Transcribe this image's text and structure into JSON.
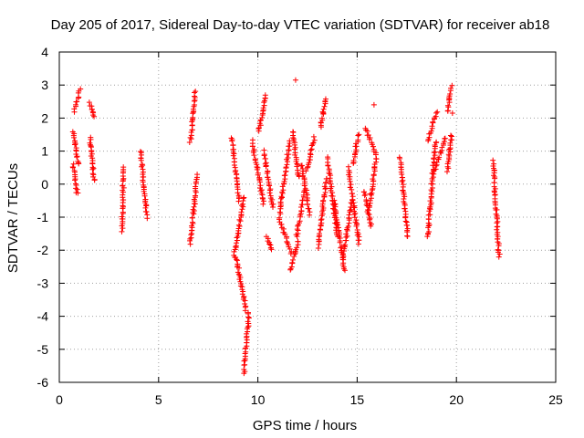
{
  "chart_data": {
    "type": "scatter",
    "title": "Day 205 of 2017, Sidereal Day-to-day VTEC variation (SDTVAR) for receiver ab18",
    "xlabel": "GPS time / hours",
    "ylabel": "SDTVAR / TECUs",
    "xlim": [
      0,
      25
    ],
    "ylim": [
      -6,
      4
    ],
    "x_ticks": [
      0,
      5,
      10,
      15,
      20,
      25
    ],
    "y_ticks": [
      -6,
      -5,
      -4,
      -3,
      -2,
      -1,
      0,
      1,
      2,
      3,
      4
    ],
    "grid": true,
    "marker": "+",
    "color": "#ff0000",
    "tracks": [
      {
        "x": [
          0.7,
          0.9
        ],
        "y": [
          -0.3,
          0.6
        ]
      },
      {
        "x": [
          0.7,
          0.95
        ],
        "y": [
          0.6,
          1.6
        ]
      },
      {
        "x": [
          0.75,
          1.05
        ],
        "y": [
          2.2,
          2.85
        ]
      },
      {
        "x": [
          1.55,
          1.75
        ],
        "y": [
          0.1,
          1.4
        ]
      },
      {
        "x": [
          1.55,
          1.75
        ],
        "y": [
          2.05,
          2.45
        ]
      },
      {
        "x": [
          3.15,
          3.25
        ],
        "y": [
          -1.4,
          0.5
        ]
      },
      {
        "x": [
          4.1,
          4.4
        ],
        "y": [
          -1.0,
          1.0
        ]
      },
      {
        "x": [
          6.6,
          6.85
        ],
        "y": [
          1.3,
          2.8
        ]
      },
      {
        "x": [
          6.6,
          6.95
        ],
        "y": [
          -1.8,
          0.3
        ]
      },
      {
        "x": [
          8.7,
          9.05
        ],
        "y": [
          -0.5,
          1.4
        ]
      },
      {
        "x": [
          8.8,
          9.3
        ],
        "y": [
          -2.2,
          -0.4
        ]
      },
      {
        "x": [
          8.9,
          9.4
        ],
        "y": [
          -3.8,
          -2.2
        ]
      },
      {
        "x": [
          9.3,
          9.55
        ],
        "y": [
          -5.7,
          -3.9
        ]
      },
      {
        "x": [
          9.7,
          10.3
        ],
        "y": [
          -0.6,
          1.3
        ]
      },
      {
        "x": [
          10.05,
          10.4
        ],
        "y": [
          1.6,
          2.7
        ]
      },
      {
        "x": [
          10.3,
          10.75
        ],
        "y": [
          -0.7,
          1.0
        ]
      },
      {
        "x": [
          10.45,
          10.7
        ],
        "y": [
          -2.0,
          -1.6
        ]
      },
      {
        "x": [
          11.05,
          11.7
        ],
        "y": [
          -2.1,
          -1.0
        ]
      },
      {
        "x": [
          11.1,
          11.6
        ],
        "y": [
          -0.9,
          1.3
        ]
      },
      {
        "x": [
          11.65,
          12.05
        ],
        "y": [
          -2.6,
          -1.7
        ]
      },
      {
        "x": [
          11.75,
          12.05
        ],
        "y": [
          0.2,
          1.6
        ]
      },
      {
        "x": [
          11.95,
          12.35
        ],
        "y": [
          -1.6,
          -0.2
        ]
      },
      {
        "x": [
          12.2,
          12.6
        ],
        "y": [
          -0.9,
          0.6
        ]
      },
      {
        "x": [
          12.45,
          12.85
        ],
        "y": [
          0.4,
          1.4
        ]
      },
      {
        "x": [
          13.05,
          13.45
        ],
        "y": [
          -1.9,
          0.2
        ]
      },
      {
        "x": [
          13.15,
          13.45
        ],
        "y": [
          1.7,
          2.6
        ]
      },
      {
        "x": [
          13.5,
          14.0
        ],
        "y": [
          -1.6,
          0.8
        ]
      },
      {
        "x": [
          13.85,
          14.35
        ],
        "y": [
          -2.6,
          -0.5
        ]
      },
      {
        "x": [
          14.25,
          14.75
        ],
        "y": [
          -2.3,
          -0.5
        ]
      },
      {
        "x": [
          14.55,
          15.1
        ],
        "y": [
          -1.8,
          0.5
        ]
      },
      {
        "x": [
          14.8,
          15.05
        ],
        "y": [
          0.6,
          1.5
        ]
      },
      {
        "x": [
          15.35,
          15.7
        ],
        "y": [
          -1.3,
          -0.2
        ]
      },
      {
        "x": [
          15.4,
          15.95
        ],
        "y": [
          0.9,
          1.7
        ]
      },
      {
        "x": [
          15.6,
          15.95
        ],
        "y": [
          -0.8,
          0.8
        ]
      },
      {
        "x": [
          17.15,
          17.55
        ],
        "y": [
          -1.6,
          0.8
        ]
      },
      {
        "x": [
          18.55,
          18.95
        ],
        "y": [
          -1.6,
          1.3
        ]
      },
      {
        "x": [
          18.55,
          19.0
        ],
        "y": [
          1.3,
          2.2
        ]
      },
      {
        "x": [
          18.85,
          19.45
        ],
        "y": [
          0.3,
          1.4
        ]
      },
      {
        "x": [
          19.55,
          19.75
        ],
        "y": [
          2.2,
          2.95
        ]
      },
      {
        "x": [
          19.55,
          19.75
        ],
        "y": [
          0.4,
          1.5
        ]
      },
      {
        "x": [
          21.85,
          22.15
        ],
        "y": [
          -2.2,
          0.7
        ]
      }
    ],
    "outliers": [
      {
        "x": 11.9,
        "y": 3.15
      },
      {
        "x": 15.85,
        "y": 2.4
      },
      {
        "x": 13.3,
        "y": 2.15
      },
      {
        "x": 19.8,
        "y": 2.15
      }
    ]
  }
}
